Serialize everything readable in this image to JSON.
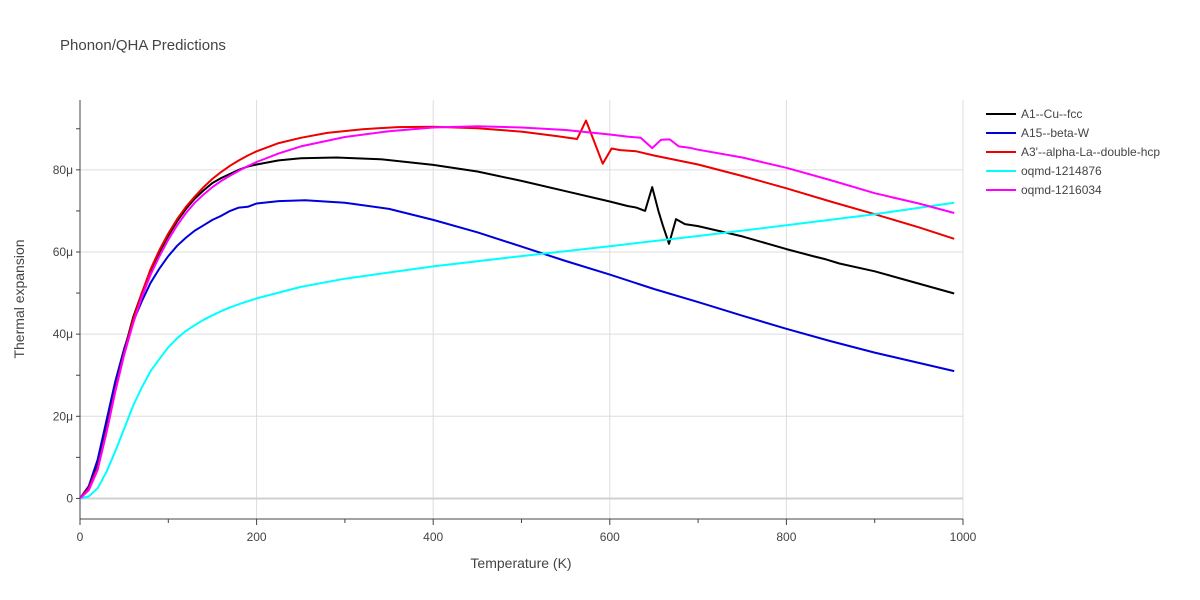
{
  "chart_data": {
    "type": "line",
    "title": "Phonon/QHA Predictions",
    "xlabel": "Temperature (K)",
    "ylabel": "Thermal expansion",
    "xlim": [
      0,
      1000
    ],
    "ylim": [
      -5e-06,
      9.7e-05
    ],
    "x_ticks": [
      0,
      200,
      400,
      600,
      800,
      1000
    ],
    "x_tick_labels": [
      "0",
      "200",
      "400",
      "600",
      "800",
      "1000"
    ],
    "y_ticks": [
      0,
      2e-05,
      4e-05,
      6e-05,
      8e-05
    ],
    "y_tick_labels": [
      "0",
      "20μ",
      "40μ",
      "60μ",
      "80μ"
    ],
    "grid": true,
    "legend_position": "top-right",
    "series": [
      {
        "name": "A1--Cu--fcc",
        "color": "#000000",
        "points": [
          [
            0,
            0
          ],
          [
            10,
            2.5e-06
          ],
          [
            20,
            8e-06
          ],
          [
            30,
            1.7e-05
          ],
          [
            40,
            2.7e-05
          ],
          [
            50,
            3.6e-05
          ],
          [
            60,
            4.4e-05
          ],
          [
            70,
            5e-05
          ],
          [
            80,
            5.55e-05
          ],
          [
            90,
            6e-05
          ],
          [
            100,
            6.4e-05
          ],
          [
            110,
            6.75e-05
          ],
          [
            120,
            7.05e-05
          ],
          [
            130,
            7.3e-05
          ],
          [
            140,
            7.5e-05
          ],
          [
            150,
            7.68e-05
          ],
          [
            160,
            7.8e-05
          ],
          [
            170,
            7.9e-05
          ],
          [
            180,
            8e-05
          ],
          [
            190,
            8.08e-05
          ],
          [
            200,
            8.13e-05
          ],
          [
            225,
            8.23e-05
          ],
          [
            250,
            8.28e-05
          ],
          [
            290,
            8.3e-05
          ],
          [
            340,
            8.26e-05
          ],
          [
            400,
            8.12e-05
          ],
          [
            450,
            7.96e-05
          ],
          [
            500,
            7.73e-05
          ],
          [
            550,
            7.48e-05
          ],
          [
            600,
            7.23e-05
          ],
          [
            620,
            7.12e-05
          ],
          [
            630,
            7.08e-05
          ],
          [
            640,
            7e-05
          ],
          [
            648,
            7.58e-05
          ],
          [
            655,
            7e-05
          ],
          [
            660,
            6.65e-05
          ],
          [
            667,
            6.2e-05
          ],
          [
            675,
            6.8e-05
          ],
          [
            685,
            6.68e-05
          ],
          [
            700,
            6.63e-05
          ],
          [
            750,
            6.38e-05
          ],
          [
            800,
            6.07e-05
          ],
          [
            830,
            5.9e-05
          ],
          [
            845,
            5.82e-05
          ],
          [
            860,
            5.72e-05
          ],
          [
            900,
            5.53e-05
          ],
          [
            950,
            5.23e-05
          ],
          [
            990,
            4.99e-05
          ]
        ]
      },
      {
        "name": "A15--beta-W",
        "color": "#0000dd",
        "points": [
          [
            0,
            0
          ],
          [
            10,
            3e-06
          ],
          [
            20,
            9.5e-06
          ],
          [
            30,
            1.9e-05
          ],
          [
            40,
            2.85e-05
          ],
          [
            50,
            3.65e-05
          ],
          [
            60,
            4.3e-05
          ],
          [
            70,
            4.8e-05
          ],
          [
            80,
            5.25e-05
          ],
          [
            90,
            5.6e-05
          ],
          [
            100,
            5.9e-05
          ],
          [
            110,
            6.15e-05
          ],
          [
            120,
            6.35e-05
          ],
          [
            130,
            6.52e-05
          ],
          [
            140,
            6.65e-05
          ],
          [
            150,
            6.78e-05
          ],
          [
            160,
            6.88e-05
          ],
          [
            170,
            7e-05
          ],
          [
            180,
            7.08e-05
          ],
          [
            190,
            7.1e-05
          ],
          [
            200,
            7.18e-05
          ],
          [
            225,
            7.24e-05
          ],
          [
            255,
            7.26e-05
          ],
          [
            300,
            7.2e-05
          ],
          [
            350,
            7.05e-05
          ],
          [
            400,
            6.78e-05
          ],
          [
            450,
            6.48e-05
          ],
          [
            500,
            6.13e-05
          ],
          [
            550,
            5.78e-05
          ],
          [
            600,
            5.45e-05
          ],
          [
            650,
            5.1e-05
          ],
          [
            700,
            4.78e-05
          ],
          [
            750,
            4.45e-05
          ],
          [
            800,
            4.13e-05
          ],
          [
            850,
            3.83e-05
          ],
          [
            900,
            3.55e-05
          ],
          [
            950,
            3.3e-05
          ],
          [
            990,
            3.1e-05
          ]
        ]
      },
      {
        "name": "A3'--alpha-La--double-hcp",
        "color": "#ee0000",
        "points": [
          [
            0,
            0
          ],
          [
            10,
            2.5e-06
          ],
          [
            20,
            7.5e-06
          ],
          [
            30,
            1.65e-05
          ],
          [
            40,
            2.65e-05
          ],
          [
            50,
            3.55e-05
          ],
          [
            60,
            4.35e-05
          ],
          [
            70,
            5e-05
          ],
          [
            80,
            5.58e-05
          ],
          [
            90,
            6.05e-05
          ],
          [
            100,
            6.45e-05
          ],
          [
            110,
            6.8e-05
          ],
          [
            120,
            7.1e-05
          ],
          [
            130,
            7.35e-05
          ],
          [
            140,
            7.58e-05
          ],
          [
            150,
            7.78e-05
          ],
          [
            160,
            7.95e-05
          ],
          [
            170,
            8.1e-05
          ],
          [
            180,
            8.23e-05
          ],
          [
            190,
            8.35e-05
          ],
          [
            200,
            8.45e-05
          ],
          [
            225,
            8.65e-05
          ],
          [
            250,
            8.78e-05
          ],
          [
            280,
            8.9e-05
          ],
          [
            320,
            8.99e-05
          ],
          [
            360,
            9.04e-05
          ],
          [
            400,
            9.05e-05
          ],
          [
            450,
            9.01e-05
          ],
          [
            500,
            8.93e-05
          ],
          [
            540,
            8.82e-05
          ],
          [
            563,
            8.75e-05
          ],
          [
            573,
            9.2e-05
          ],
          [
            583,
            8.65e-05
          ],
          [
            592,
            8.15e-05
          ],
          [
            602,
            8.52e-05
          ],
          [
            612,
            8.48e-05
          ],
          [
            630,
            8.45e-05
          ],
          [
            650,
            8.35e-05
          ],
          [
            700,
            8.13e-05
          ],
          [
            750,
            7.85e-05
          ],
          [
            800,
            7.55e-05
          ],
          [
            850,
            7.23e-05
          ],
          [
            900,
            6.92e-05
          ],
          [
            950,
            6.6e-05
          ],
          [
            990,
            6.32e-05
          ]
        ]
      },
      {
        "name": "oqmd-1214876",
        "color": "#00ffff",
        "points": [
          [
            0,
            0
          ],
          [
            10,
            5e-07
          ],
          [
            20,
            2.5e-06
          ],
          [
            30,
            6.5e-06
          ],
          [
            40,
            1.15e-05
          ],
          [
            50,
            1.7e-05
          ],
          [
            60,
            2.25e-05
          ],
          [
            70,
            2.7e-05
          ],
          [
            80,
            3.1e-05
          ],
          [
            90,
            3.4e-05
          ],
          [
            100,
            3.68e-05
          ],
          [
            110,
            3.9e-05
          ],
          [
            120,
            4.08e-05
          ],
          [
            130,
            4.22e-05
          ],
          [
            140,
            4.35e-05
          ],
          [
            150,
            4.46e-05
          ],
          [
            160,
            4.56e-05
          ],
          [
            170,
            4.65e-05
          ],
          [
            180,
            4.73e-05
          ],
          [
            200,
            4.87e-05
          ],
          [
            250,
            5.15e-05
          ],
          [
            300,
            5.35e-05
          ],
          [
            350,
            5.5e-05
          ],
          [
            400,
            5.65e-05
          ],
          [
            500,
            5.9e-05
          ],
          [
            600,
            6.14e-05
          ],
          [
            700,
            6.39e-05
          ],
          [
            800,
            6.65e-05
          ],
          [
            900,
            6.92e-05
          ],
          [
            990,
            7.2e-05
          ]
        ]
      },
      {
        "name": "oqmd-1216034",
        "color": "#ff00ff",
        "points": [
          [
            0,
            0
          ],
          [
            10,
            2e-06
          ],
          [
            20,
            7e-06
          ],
          [
            30,
            1.6e-05
          ],
          [
            40,
            2.6e-05
          ],
          [
            50,
            3.5e-05
          ],
          [
            60,
            4.25e-05
          ],
          [
            70,
            4.9e-05
          ],
          [
            80,
            5.45e-05
          ],
          [
            90,
            5.9e-05
          ],
          [
            100,
            6.3e-05
          ],
          [
            110,
            6.65e-05
          ],
          [
            120,
            6.95e-05
          ],
          [
            130,
            7.2e-05
          ],
          [
            140,
            7.4e-05
          ],
          [
            150,
            7.58e-05
          ],
          [
            160,
            7.73e-05
          ],
          [
            170,
            7.86e-05
          ],
          [
            180,
            7.98e-05
          ],
          [
            190,
            8.09e-05
          ],
          [
            200,
            8.19e-05
          ],
          [
            225,
            8.4e-05
          ],
          [
            250,
            8.57e-05
          ],
          [
            300,
            8.8e-05
          ],
          [
            350,
            8.94e-05
          ],
          [
            400,
            9.03e-05
          ],
          [
            450,
            9.06e-05
          ],
          [
            500,
            9.03e-05
          ],
          [
            550,
            8.97e-05
          ],
          [
            600,
            8.86e-05
          ],
          [
            620,
            8.81e-05
          ],
          [
            635,
            8.78e-05
          ],
          [
            648,
            8.53e-05
          ],
          [
            658,
            8.73e-05
          ],
          [
            668,
            8.74e-05
          ],
          [
            678,
            8.57e-05
          ],
          [
            690,
            8.54e-05
          ],
          [
            700,
            8.49e-05
          ],
          [
            750,
            8.3e-05
          ],
          [
            800,
            8.05e-05
          ],
          [
            850,
            7.75e-05
          ],
          [
            900,
            7.43e-05
          ],
          [
            950,
            7.18e-05
          ],
          [
            990,
            6.95e-05
          ]
        ]
      }
    ]
  }
}
